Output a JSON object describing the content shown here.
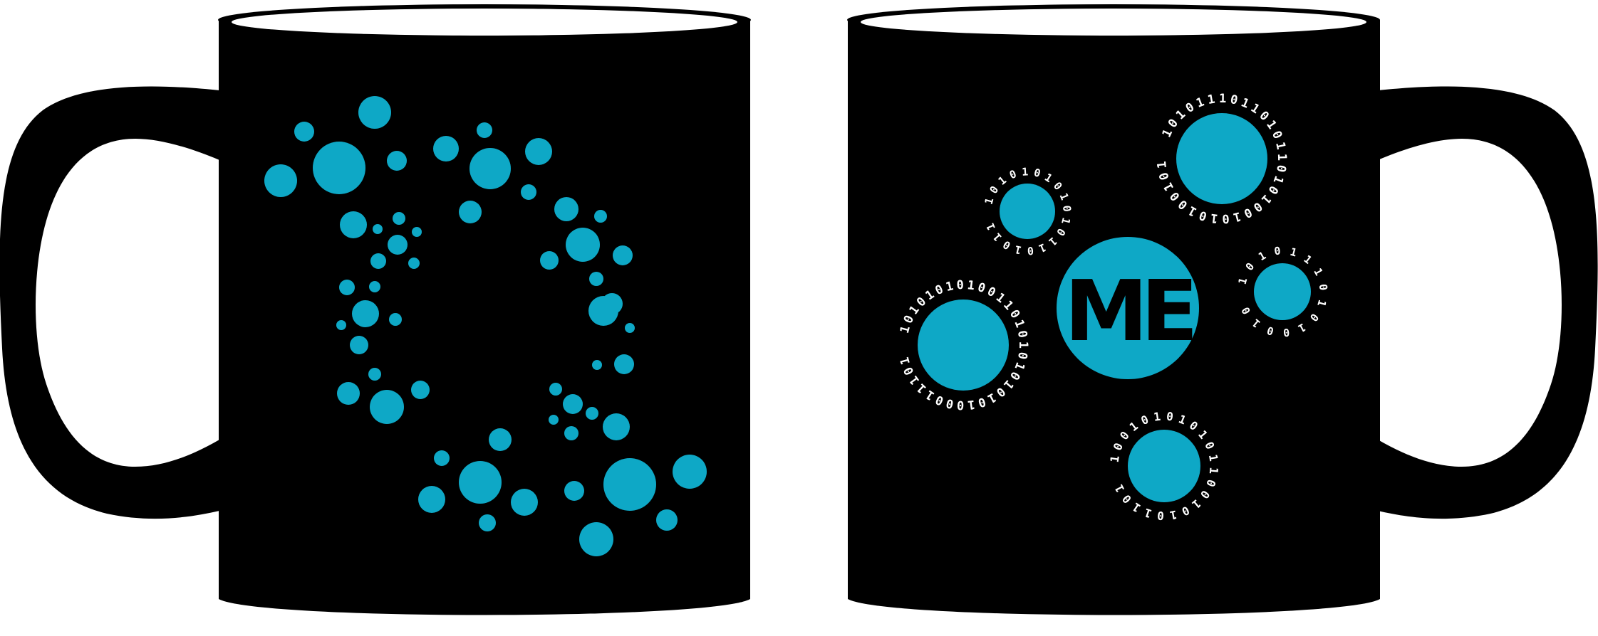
{
  "colors": {
    "mug_body": "#000000",
    "rim_inner": "#ffffff",
    "dot_accent": "#0ea8c6",
    "binary_text": "#ffffff",
    "logo_text": "#000000",
    "background": "#ffffff"
  },
  "left_mug": {
    "graphic": "dotted-c-swirl"
  },
  "right_mug": {
    "logo_text": "ME",
    "binary_rings": [
      "1010111011010110101001010100101",
      "1010101010101101011",
      "101010101001101010101010100011101",
      "101011101010010",
      "10010101010110010101101"
    ]
  }
}
